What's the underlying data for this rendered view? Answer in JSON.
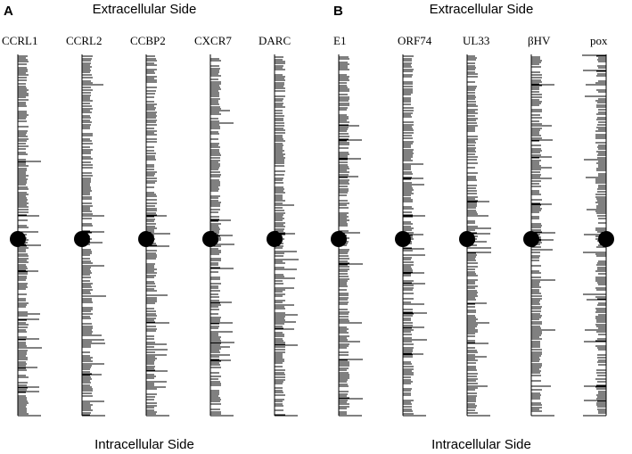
{
  "panel_a": {
    "letter": "A",
    "top_label": "Extracellular Side",
    "bottom_label": "Intracellular Side",
    "tracks": [
      "CCRL1",
      "CCRL2",
      "CCBP2",
      "CXCR7",
      "DARC"
    ]
  },
  "panel_b": {
    "letter": "B",
    "top_label": "Extracellular Side",
    "bottom_label": "Intracellular Side",
    "tracks": [
      "E1",
      "ORF74",
      "UL33",
      "βHV",
      "pox"
    ]
  },
  "colors": {
    "ink": "#000000",
    "background": "#ffffff"
  }
}
